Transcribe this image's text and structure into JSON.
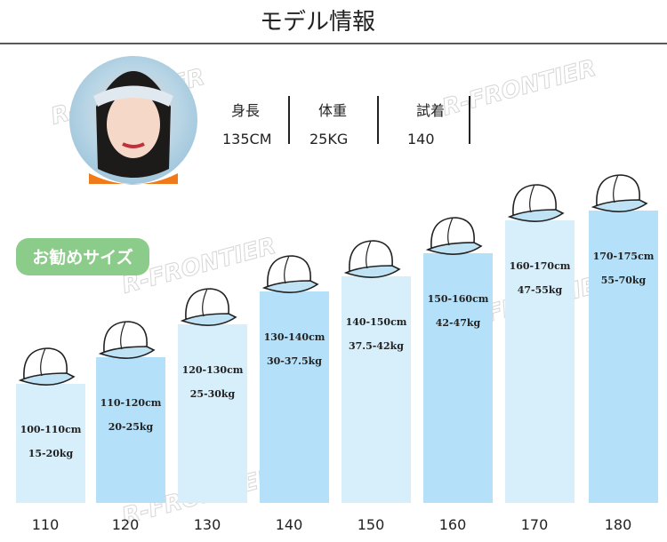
{
  "header": {
    "title": "モデル情報"
  },
  "model": {
    "fields": [
      {
        "label": "身長",
        "value": "135CM"
      },
      {
        "label": "体重",
        "value": "25KG"
      },
      {
        "label": "試着",
        "value": "140"
      }
    ]
  },
  "badge": "お勧めサイズ",
  "watermark": "R-FRONTIER",
  "sizes": [
    {
      "size": "110",
      "height": "100-110cm",
      "weight": "15-20kg"
    },
    {
      "size": "120",
      "height": "110-120cm",
      "weight": "20-25kg"
    },
    {
      "size": "130",
      "height": "120-130cm",
      "weight": "25-30kg"
    },
    {
      "size": "140",
      "height": "130-140cm",
      "weight": "30-37.5kg"
    },
    {
      "size": "150",
      "height": "140-150cm",
      "weight": "37.5-42kg"
    },
    {
      "size": "160",
      "height": "150-160cm",
      "weight": "42-47kg"
    },
    {
      "size": "170",
      "height": "160-170cm",
      "weight": "47-55kg"
    },
    {
      "size": "180",
      "height": "170-175cm",
      "weight": "55-70kg"
    }
  ]
}
